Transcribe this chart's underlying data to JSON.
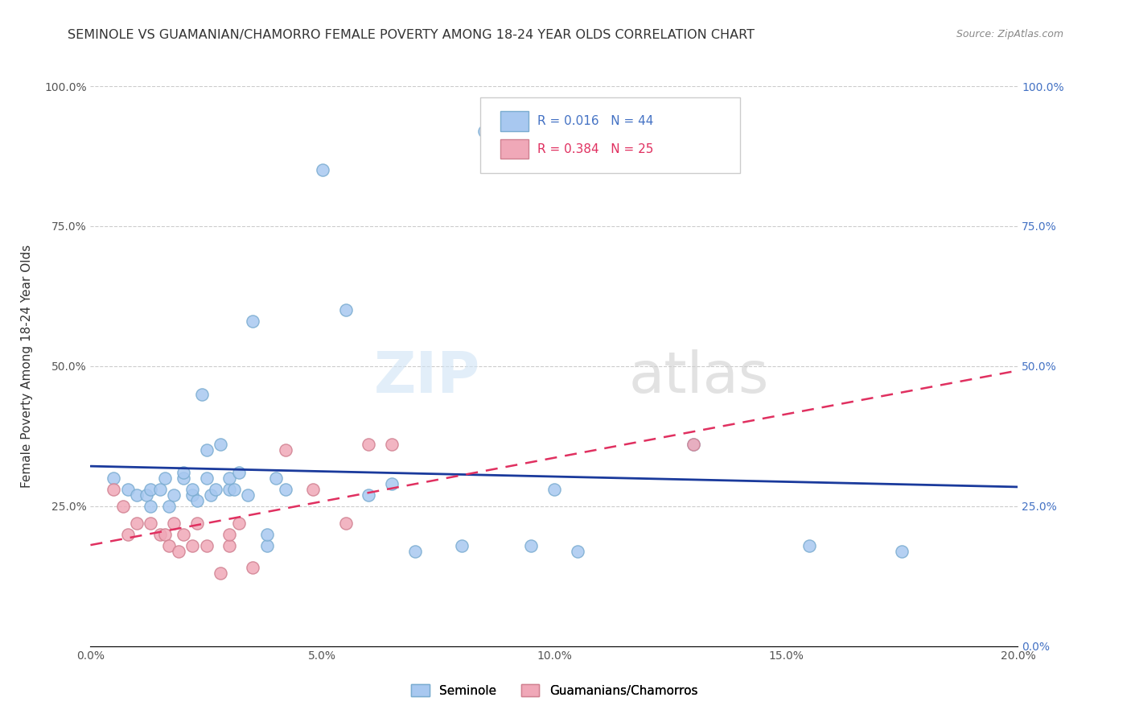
{
  "title": "SEMINOLE VS GUAMANIAN/CHAMORRO FEMALE POVERTY AMONG 18-24 YEAR OLDS CORRELATION CHART",
  "source": "Source: ZipAtlas.com",
  "xlabel_bottom": "",
  "ylabel": "Female Poverty Among 18-24 Year Olds",
  "xlim": [
    0,
    0.2
  ],
  "ylim": [
    0,
    1.0
  ],
  "xticks": [
    0.0,
    0.05,
    0.1,
    0.15,
    0.2
  ],
  "xtick_labels": [
    "0.0%",
    "5.0%",
    "10.0%",
    "15.0%",
    "20.0%"
  ],
  "yticks": [
    0.0,
    0.25,
    0.5,
    0.75,
    1.0
  ],
  "ytick_labels": [
    "",
    "25.0%",
    "50.0%",
    "75.0%",
    "100.0%"
  ],
  "right_ytick_labels": [
    "0.0%",
    "25.0%",
    "50.0%",
    "75.0%",
    "100.0%"
  ],
  "seminole_color": "#a8c8f0",
  "guam_color": "#f0a8b8",
  "seminole_edge": "#7aacd0",
  "guam_edge": "#d08090",
  "reg_seminole_color": "#1a3a9c",
  "reg_guam_color": "#e03060",
  "legend_R_seminole": "R = 0.016",
  "legend_N_seminole": "N = 44",
  "legend_R_guam": "R = 0.384",
  "legend_N_guam": "N = 25",
  "seminole_x": [
    0.005,
    0.008,
    0.01,
    0.012,
    0.013,
    0.013,
    0.015,
    0.016,
    0.017,
    0.018,
    0.02,
    0.02,
    0.022,
    0.022,
    0.023,
    0.024,
    0.025,
    0.025,
    0.026,
    0.027,
    0.028,
    0.03,
    0.03,
    0.031,
    0.032,
    0.034,
    0.035,
    0.038,
    0.038,
    0.04,
    0.042,
    0.05,
    0.055,
    0.06,
    0.065,
    0.07,
    0.08,
    0.085,
    0.095,
    0.1,
    0.105,
    0.13,
    0.155,
    0.175
  ],
  "seminole_y": [
    0.3,
    0.28,
    0.27,
    0.27,
    0.28,
    0.25,
    0.28,
    0.3,
    0.25,
    0.27,
    0.3,
    0.31,
    0.27,
    0.28,
    0.26,
    0.45,
    0.3,
    0.35,
    0.27,
    0.28,
    0.36,
    0.28,
    0.3,
    0.28,
    0.31,
    0.27,
    0.58,
    0.18,
    0.2,
    0.3,
    0.28,
    0.85,
    0.6,
    0.27,
    0.29,
    0.17,
    0.18,
    0.92,
    0.18,
    0.28,
    0.17,
    0.36,
    0.18,
    0.17
  ],
  "guam_x": [
    0.005,
    0.007,
    0.008,
    0.01,
    0.013,
    0.015,
    0.016,
    0.017,
    0.018,
    0.019,
    0.02,
    0.022,
    0.023,
    0.025,
    0.028,
    0.03,
    0.03,
    0.032,
    0.035,
    0.042,
    0.048,
    0.055,
    0.06,
    0.065,
    0.13
  ],
  "guam_y": [
    0.28,
    0.25,
    0.2,
    0.22,
    0.22,
    0.2,
    0.2,
    0.18,
    0.22,
    0.17,
    0.2,
    0.18,
    0.22,
    0.18,
    0.13,
    0.18,
    0.2,
    0.22,
    0.14,
    0.35,
    0.28,
    0.22,
    0.36,
    0.36,
    0.36
  ],
  "watermark": "ZIPatlas",
  "background_color": "#ffffff",
  "grid_color": "#cccccc"
}
